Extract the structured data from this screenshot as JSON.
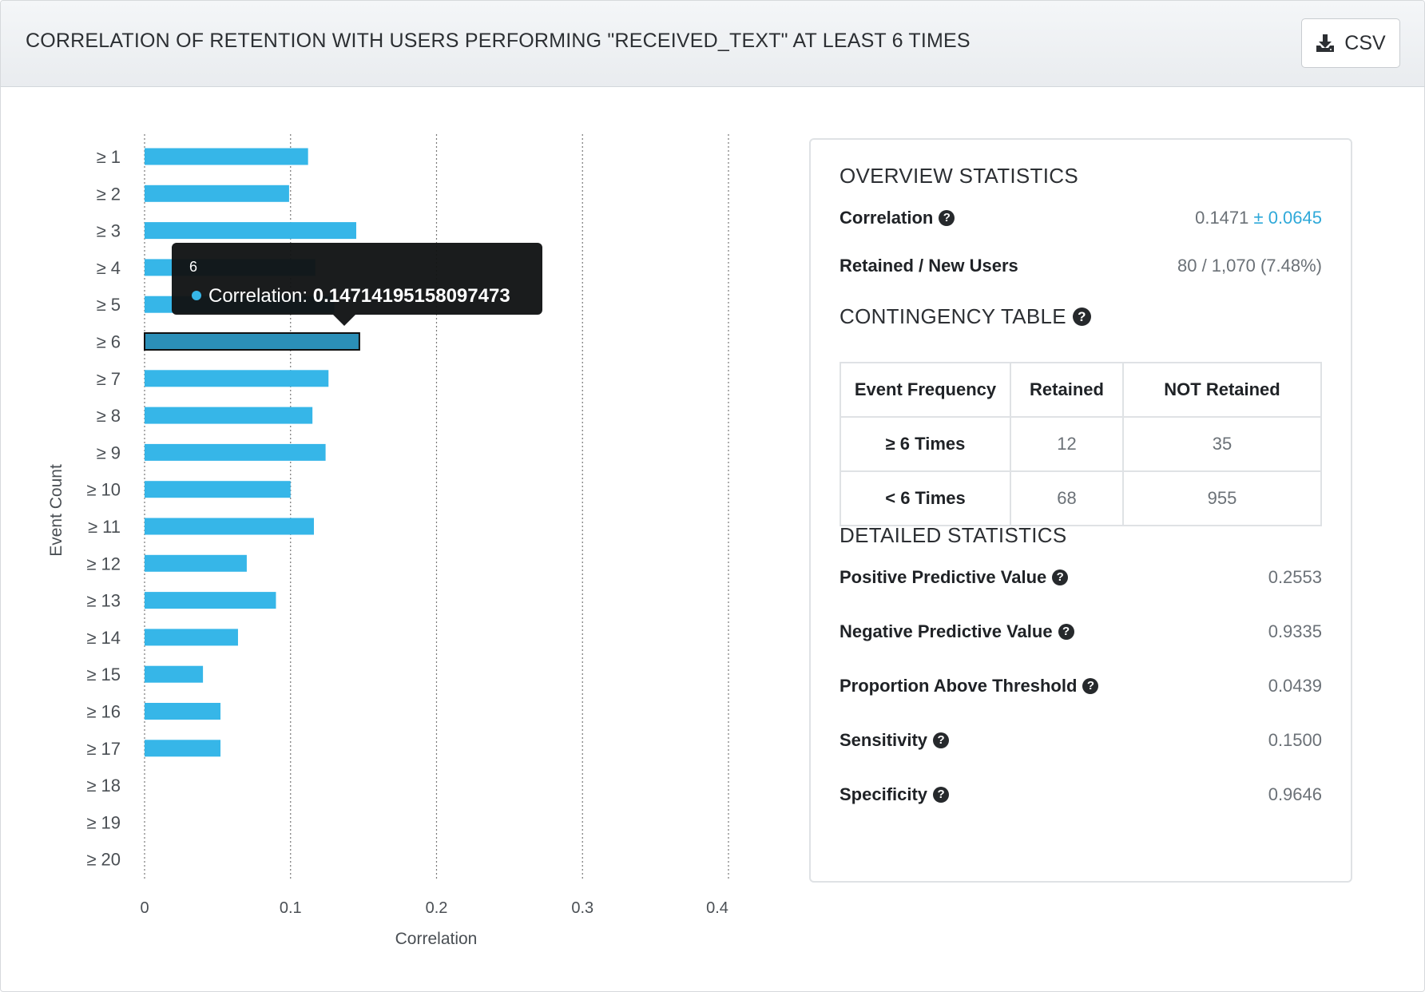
{
  "header": {
    "title": "CORRELATION OF RETENTION WITH USERS PERFORMING \"RECEIVED_TEXT\" AT LEAST 6 TIMES",
    "csv_label": "CSV"
  },
  "chart_data": {
    "type": "bar",
    "orientation": "horizontal",
    "categories": [
      "≥ 1",
      "≥ 2",
      "≥ 3",
      "≥ 4",
      "≥ 5",
      "≥ 6",
      "≥ 7",
      "≥ 8",
      "≥ 9",
      "≥ 10",
      "≥ 11",
      "≥ 12",
      "≥ 13",
      "≥ 14",
      "≥ 15",
      "≥ 16",
      "≥ 17",
      "≥ 18",
      "≥ 19",
      "≥ 20"
    ],
    "values": [
      0.112,
      0.099,
      0.145,
      0.117,
      0.13,
      0.14714195158097473,
      0.126,
      0.115,
      0.124,
      0.1,
      0.116,
      0.07,
      0.09,
      0.064,
      0.04,
      0.052,
      0.052,
      null,
      null,
      null
    ],
    "xlabel": "Correlation",
    "ylabel": "Event Count",
    "xticks": [
      "0",
      "0.1",
      "0.2",
      "0.3",
      "0.4"
    ],
    "xlim": [
      0,
      0.4
    ],
    "grid": "vertical dotted",
    "bar_color": "#36b6e8",
    "highlight_color": "#2b8fb8",
    "highlighted_index": 5,
    "tooltip": {
      "title": "6",
      "series_label": "Correlation: ",
      "value": "0.14714195158097473"
    }
  },
  "overview": {
    "title": "OVERVIEW STATISTICS",
    "correlation_label": "Correlation",
    "correlation_value": "0.1471",
    "correlation_error": "± 0.0645",
    "retained_label": "Retained / New Users",
    "retained_value": "80 / 1,070 (7.48%)"
  },
  "contingency": {
    "title": "CONTINGENCY TABLE",
    "headers": [
      "Event Frequency",
      "Retained",
      "NOT Retained"
    ],
    "rows": [
      [
        "≥ 6 Times",
        "12",
        "35"
      ],
      [
        "< 6 Times",
        "68",
        "955"
      ]
    ]
  },
  "detailed": {
    "title": "DETAILED STATISTICS",
    "items": [
      {
        "label": "Positive Predictive Value",
        "value": "0.2553"
      },
      {
        "label": "Negative Predictive Value",
        "value": "0.9335"
      },
      {
        "label": "Proportion Above Threshold",
        "value": "0.0439"
      },
      {
        "label": "Sensitivity",
        "value": "0.1500"
      },
      {
        "label": "Specificity",
        "value": "0.9646"
      }
    ]
  },
  "icons": {
    "help": "question-circle-icon",
    "download": "download-icon"
  }
}
